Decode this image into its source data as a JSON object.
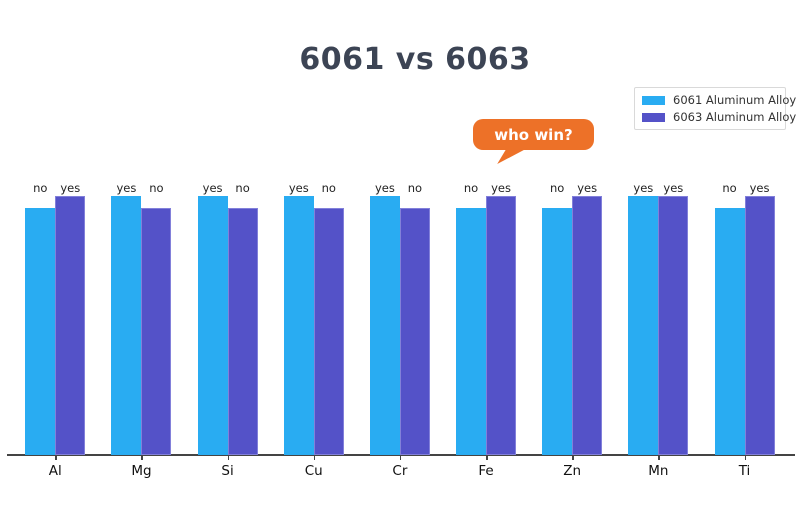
{
  "title": "6061 vs 6063",
  "legend": {
    "items": [
      {
        "label": "6061 Aluminum Alloy",
        "color": "#29acf2"
      },
      {
        "label": "6063 Aluminum Alloy",
        "color": "#5452c8"
      }
    ]
  },
  "annotation": {
    "text": "who win?",
    "color": "#ed7128",
    "target_category": "Fe"
  },
  "chart_data": {
    "type": "bar",
    "title": "6061 vs 6063",
    "categories": [
      "Al",
      "Mg",
      "Si",
      "Cu",
      "Cr",
      "Fe",
      "Zn",
      "Mn",
      "Ti"
    ],
    "series": [
      {
        "name": "6061 Aluminum Alloy",
        "color": "#29acf2",
        "labels": [
          "no",
          "yes",
          "yes",
          "yes",
          "yes",
          "no",
          "no",
          "yes",
          "no"
        ],
        "values": [
          0.95,
          1,
          1,
          1,
          1,
          0.95,
          0.95,
          1,
          0.95
        ]
      },
      {
        "name": "6063 Aluminum Alloy",
        "color": "#5452c8",
        "labels": [
          "yes",
          "no",
          "no",
          "no",
          "no",
          "yes",
          "yes",
          "yes",
          "yes"
        ],
        "values": [
          1,
          0.95,
          0.95,
          0.95,
          0.95,
          1,
          1,
          1,
          1
        ]
      }
    ],
    "ylim": [
      0,
      1.15
    ],
    "grid": false,
    "y_axis_shown": false,
    "legend_position": "top-right",
    "bar_labels_shown": true
  }
}
